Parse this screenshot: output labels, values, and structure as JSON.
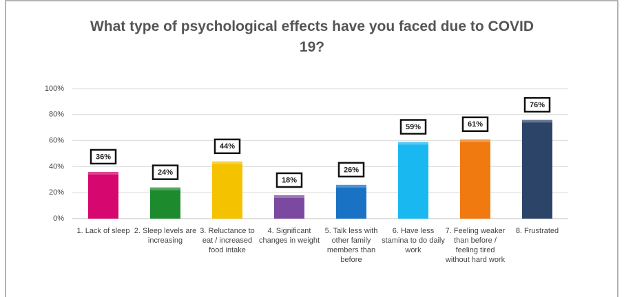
{
  "chart_data": {
    "type": "bar",
    "title": "What type of psychological effects have you faced due to COVID 19?",
    "categories": [
      "1. Lack of sleep",
      "2. Sleep levels are increasing",
      "3. Reluctance to eat / increased food intake",
      "4. Significant changes in weight",
      "5. Talk less with other family members than before",
      "6. Have less stamina to do daily work",
      "7. Feeling weaker than before / feeling tired without hard work",
      "8. Frustrated"
    ],
    "values": [
      36,
      24,
      44,
      18,
      26,
      59,
      61,
      76
    ],
    "value_labels": [
      "36%",
      "24%",
      "44%",
      "18%",
      "26%",
      "59%",
      "61%",
      "76%"
    ],
    "colors": [
      "#d6076f",
      "#1e8a2e",
      "#f5c200",
      "#7b4aa0",
      "#1a72c4",
      "#1ab8f0",
      "#f07a10",
      "#2b4468"
    ],
    "ylim": [
      0,
      100
    ],
    "yticks": [
      {
        "value": 0,
        "label": "0%"
      },
      {
        "value": 20,
        "label": "20%"
      },
      {
        "value": 40,
        "label": "40%"
      },
      {
        "value": 60,
        "label": "60%"
      },
      {
        "value": 80,
        "label": "80%"
      },
      {
        "value": 100,
        "label": "100%"
      }
    ],
    "grid": true
  }
}
